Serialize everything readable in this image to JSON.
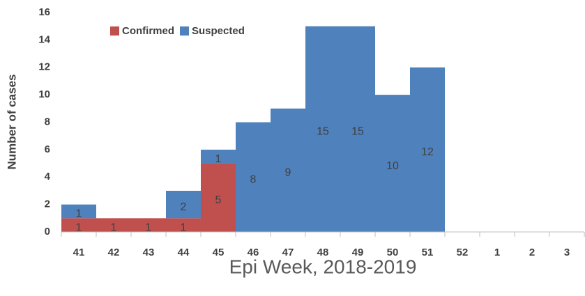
{
  "chart_data": {
    "type": "stacked_bar",
    "x_label": "Epi Week, 2018-2019",
    "y_label": "Number of cases",
    "categories": [
      "41",
      "42",
      "43",
      "44",
      "45",
      "46",
      "47",
      "48",
      "49",
      "50",
      "51",
      "52",
      "1",
      "2",
      "3"
    ],
    "series": [
      {
        "name": "Confirmed",
        "color": "#c0504d",
        "values": [
          1,
          1,
          1,
          1,
          5,
          null,
          null,
          null,
          null,
          null,
          null,
          null,
          null,
          null,
          null
        ]
      },
      {
        "name": "Suspected",
        "color": "#4f81bd",
        "values": [
          1,
          null,
          null,
          2,
          1,
          8,
          9,
          15,
          15,
          10,
          12,
          null,
          null,
          null,
          null
        ]
      }
    ],
    "ylim": [
      0,
      16
    ],
    "yticks": [
      0,
      2,
      4,
      6,
      8,
      10,
      12,
      14,
      16
    ],
    "legend": "top-left"
  }
}
